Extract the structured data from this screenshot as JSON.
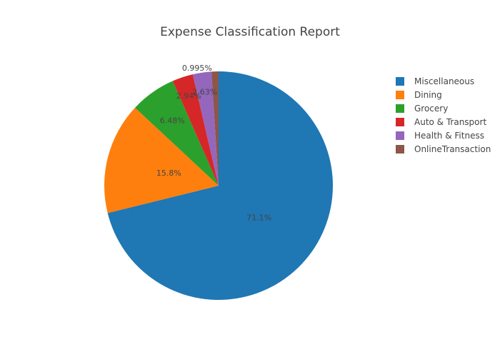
{
  "chart_data": {
    "type": "pie",
    "title": "Expense Classification Report",
    "legend_position": "top-right",
    "sort": "descending",
    "direction": "clockwise",
    "labels": [
      "Miscellaneous",
      "Dining",
      "Grocery",
      "Auto & Transport",
      "Health & Fitness",
      "OnlineTransaction"
    ],
    "values": [
      71.1,
      15.8,
      6.48,
      2.94,
      2.63,
      0.995
    ],
    "value_labels": [
      "71.1%",
      "15.8%",
      "6.48%",
      "2.94%",
      "2.63%",
      "0.995%"
    ],
    "colors": [
      "#1f77b4",
      "#ff7f0e",
      "#2ca02c",
      "#d62728",
      "#9467bd",
      "#8c564b"
    ]
  }
}
